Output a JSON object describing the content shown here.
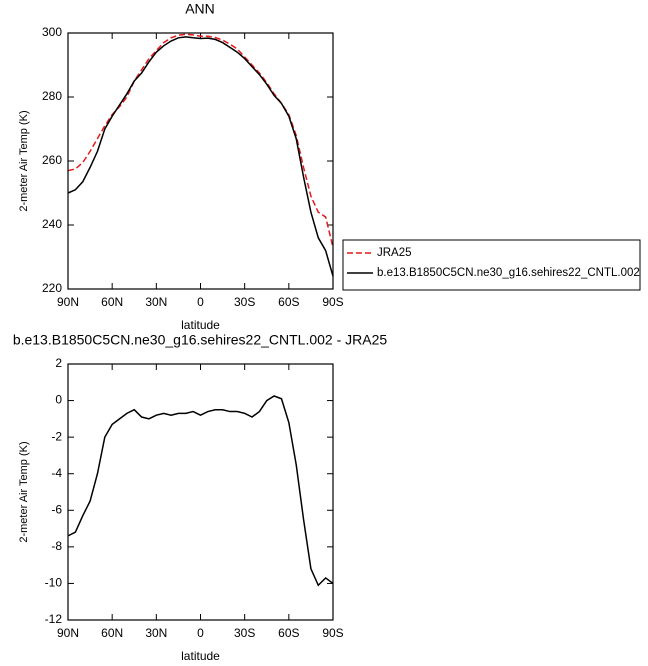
{
  "chart_data": [
    {
      "type": "line",
      "title": "ANN",
      "xlabel": "latitude",
      "ylabel": "2-meter Air Temp (K)",
      "x": [
        90,
        85,
        80,
        75,
        70,
        65,
        60,
        55,
        50,
        45,
        40,
        35,
        30,
        25,
        20,
        15,
        10,
        5,
        0,
        -5,
        -10,
        -15,
        -20,
        -25,
        -30,
        -35,
        -40,
        -45,
        -50,
        -55,
        -60,
        -65,
        -70,
        -75,
        -80,
        -85,
        -90
      ],
      "series": [
        {
          "name": "JRA25",
          "color": "#e41a1c",
          "dash": true,
          "values": [
            257,
            257.5,
            259.5,
            263,
            267,
            271,
            274.5,
            277,
            280,
            285,
            288.5,
            292,
            294.5,
            297,
            298.5,
            299.3,
            299.6,
            299.4,
            299,
            299,
            298.6,
            297.8,
            296.5,
            295,
            292.5,
            290,
            287.5,
            284.5,
            281,
            278,
            274.5,
            268,
            258,
            249,
            244,
            242.5,
            233
          ]
        },
        {
          "name": "b.e13.B1850C5CN.ne30_g16.sehires22_CNTL.002",
          "color": "#000000",
          "dash": false,
          "values": [
            250,
            251,
            253.5,
            258,
            263,
            270,
            274,
            277.5,
            281,
            285,
            287.5,
            291,
            294,
            296,
            297.5,
            298.5,
            298.8,
            298.5,
            298.3,
            298.4,
            298,
            297,
            295.5,
            294,
            292,
            289.5,
            287,
            284,
            280.5,
            278,
            274,
            267,
            255,
            244,
            236,
            232,
            224
          ]
        }
      ],
      "xlim": [
        90,
        -90
      ],
      "xticks": [
        {
          "value": 90,
          "label": "90N"
        },
        {
          "value": 60,
          "label": "60N"
        },
        {
          "value": 30,
          "label": "30N"
        },
        0,
        {
          "value": -30,
          "label": "30S"
        },
        {
          "value": -60,
          "label": "60S"
        },
        {
          "value": -90,
          "label": "90S"
        }
      ],
      "ylim": [
        220,
        300
      ],
      "yticks": [
        220,
        240,
        260,
        280,
        300
      ],
      "legend": "right"
    },
    {
      "type": "line",
      "title": "b.e13.B1850C5CN.ne30_g16.sehires22_CNTL.002 - JRA25",
      "xlabel": "latitude",
      "ylabel": "2-meter Air Temp (K)",
      "x": [
        90,
        85,
        80,
        75,
        70,
        65,
        60,
        55,
        50,
        45,
        40,
        35,
        30,
        25,
        20,
        15,
        10,
        5,
        0,
        -5,
        -10,
        -15,
        -20,
        -25,
        -30,
        -35,
        -40,
        -45,
        -50,
        -55,
        -60,
        -65,
        -70,
        -75,
        -80,
        -85,
        -90
      ],
      "series": [
        {
          "color": "#000000",
          "dash": false,
          "values": [
            -7.4,
            -7.2,
            -6.3,
            -5.5,
            -4,
            -2,
            -1.3,
            -1,
            -0.7,
            -0.5,
            -0.9,
            -1,
            -0.8,
            -0.7,
            -0.8,
            -0.7,
            -0.7,
            -0.6,
            -0.8,
            -0.6,
            -0.5,
            -0.5,
            -0.6,
            -0.6,
            -0.7,
            -0.9,
            -0.6,
            0,
            0.25,
            0.1,
            -1.2,
            -3.5,
            -6.5,
            -9.2,
            -10.1,
            -9.7,
            -10
          ]
        }
      ],
      "xlim": [
        90,
        -90
      ],
      "xticks": [
        {
          "value": 90,
          "label": "90N"
        },
        {
          "value": 60,
          "label": "60N"
        },
        {
          "value": 30,
          "label": "30N"
        },
        0,
        {
          "value": -30,
          "label": "30S"
        },
        {
          "value": -60,
          "label": "60S"
        },
        {
          "value": -90,
          "label": "90S"
        }
      ],
      "ylim": [
        -12,
        2
      ],
      "yticks": [
        -12,
        -10,
        -8,
        -6,
        -4,
        -2,
        0,
        2
      ]
    }
  ]
}
